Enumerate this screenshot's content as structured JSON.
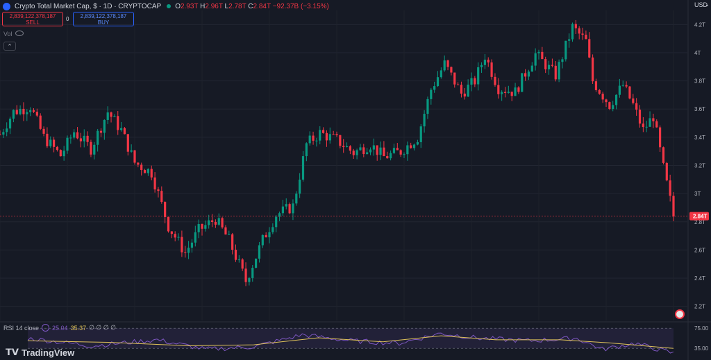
{
  "header": {
    "title": "Crypto Total Market Cap, $ · 1D · CRYPTOCAP",
    "ohlc": [
      {
        "k": "O",
        "v": "2.93T"
      },
      {
        "k": "H",
        "v": "2.96T"
      },
      {
        "k": "L",
        "v": "2.78T"
      },
      {
        "k": "C",
        "v": "2.84T"
      }
    ],
    "change": "−92.37B (−3.15%)"
  },
  "trade": {
    "sell_price": "2,839,122,378,187",
    "sell_label": "SELL",
    "buy_price": "2,839,122,378,187",
    "buy_label": "BUY",
    "spread": "0"
  },
  "vol_label": "Vol",
  "collapse_glyph": "⌃",
  "currency": "USD",
  "currency_chevron": "⌄",
  "rsi": {
    "label": "RSI 14 close",
    "value_rsi": "25.04",
    "value_ma": "35.37",
    "extra": "∅ ∅ ∅ ∅",
    "levels": [
      "75.00",
      "35.00"
    ]
  },
  "brand": "TradingView",
  "colors": {
    "up": "#089981",
    "down": "#f23645",
    "rsi": "#7e57c2",
    "rsi_ma": "#e0c35a",
    "price_label": "#f23645"
  },
  "chart_data": {
    "type": "candlestick",
    "x_range": [
      0,
      200
    ],
    "ylim": [
      2.1,
      4.3
    ],
    "ylabel_unit": "T",
    "y_ticks": [
      "2.2T",
      "2.4T",
      "2.6T",
      "2.8T",
      "3T",
      "3.2T",
      "3.4T",
      "3.6T",
      "3.8T",
      "4T",
      "4.2T"
    ],
    "y_tick_values": [
      2.2,
      2.4,
      2.6,
      2.8,
      3.0,
      3.2,
      3.4,
      3.6,
      3.8,
      4.0,
      4.2
    ],
    "last_price": 2.84,
    "last_price_label": "2.84T",
    "close_path": [
      [
        0,
        3.42
      ],
      [
        4,
        3.58
      ],
      [
        9,
        3.62
      ],
      [
        13,
        3.4
      ],
      [
        18,
        3.27
      ],
      [
        22,
        3.44
      ],
      [
        27,
        3.32
      ],
      [
        32,
        3.58
      ],
      [
        36,
        3.45
      ],
      [
        40,
        3.22
      ],
      [
        45,
        3.15
      ],
      [
        50,
        2.77
      ],
      [
        55,
        2.58
      ],
      [
        59,
        2.74
      ],
      [
        64,
        2.82
      ],
      [
        68,
        2.67
      ],
      [
        73,
        2.38
      ],
      [
        78,
        2.67
      ],
      [
        82,
        2.85
      ],
      [
        87,
        2.91
      ],
      [
        91,
        3.35
      ],
      [
        95,
        3.43
      ],
      [
        100,
        3.38
      ],
      [
        105,
        3.29
      ],
      [
        110,
        3.35
      ],
      [
        114,
        3.26
      ],
      [
        119,
        3.3
      ],
      [
        124,
        3.4
      ],
      [
        128,
        3.74
      ],
      [
        132,
        3.92
      ],
      [
        137,
        3.71
      ],
      [
        141,
        3.8
      ],
      [
        144,
        3.98
      ],
      [
        148,
        3.75
      ],
      [
        153,
        3.72
      ],
      [
        159,
        3.99
      ],
      [
        165,
        3.84
      ],
      [
        170,
        4.18
      ],
      [
        174,
        4.08
      ],
      [
        176,
        3.8
      ],
      [
        181,
        3.63
      ],
      [
        185,
        3.77
      ],
      [
        188,
        3.63
      ],
      [
        191,
        3.45
      ],
      [
        194,
        3.55
      ],
      [
        197,
        3.18
      ],
      [
        200,
        2.84
      ]
    ],
    "rsi_path": [
      [
        0,
        55
      ],
      [
        20,
        40
      ],
      [
        40,
        52
      ],
      [
        55,
        33
      ],
      [
        70,
        38
      ],
      [
        85,
        62
      ],
      [
        100,
        50
      ],
      [
        115,
        45
      ],
      [
        128,
        65
      ],
      [
        140,
        55
      ],
      [
        155,
        50
      ],
      [
        170,
        55
      ],
      [
        178,
        33
      ],
      [
        188,
        45
      ],
      [
        200,
        25
      ]
    ],
    "rsi_ma_path": [
      [
        0,
        50
      ],
      [
        25,
        47
      ],
      [
        50,
        40
      ],
      [
        70,
        42
      ],
      [
        90,
        56
      ],
      [
        110,
        48
      ],
      [
        128,
        60
      ],
      [
        145,
        52
      ],
      [
        165,
        52
      ],
      [
        180,
        46
      ],
      [
        200,
        35
      ]
    ],
    "rsi_ylim": [
      20,
      85
    ]
  }
}
